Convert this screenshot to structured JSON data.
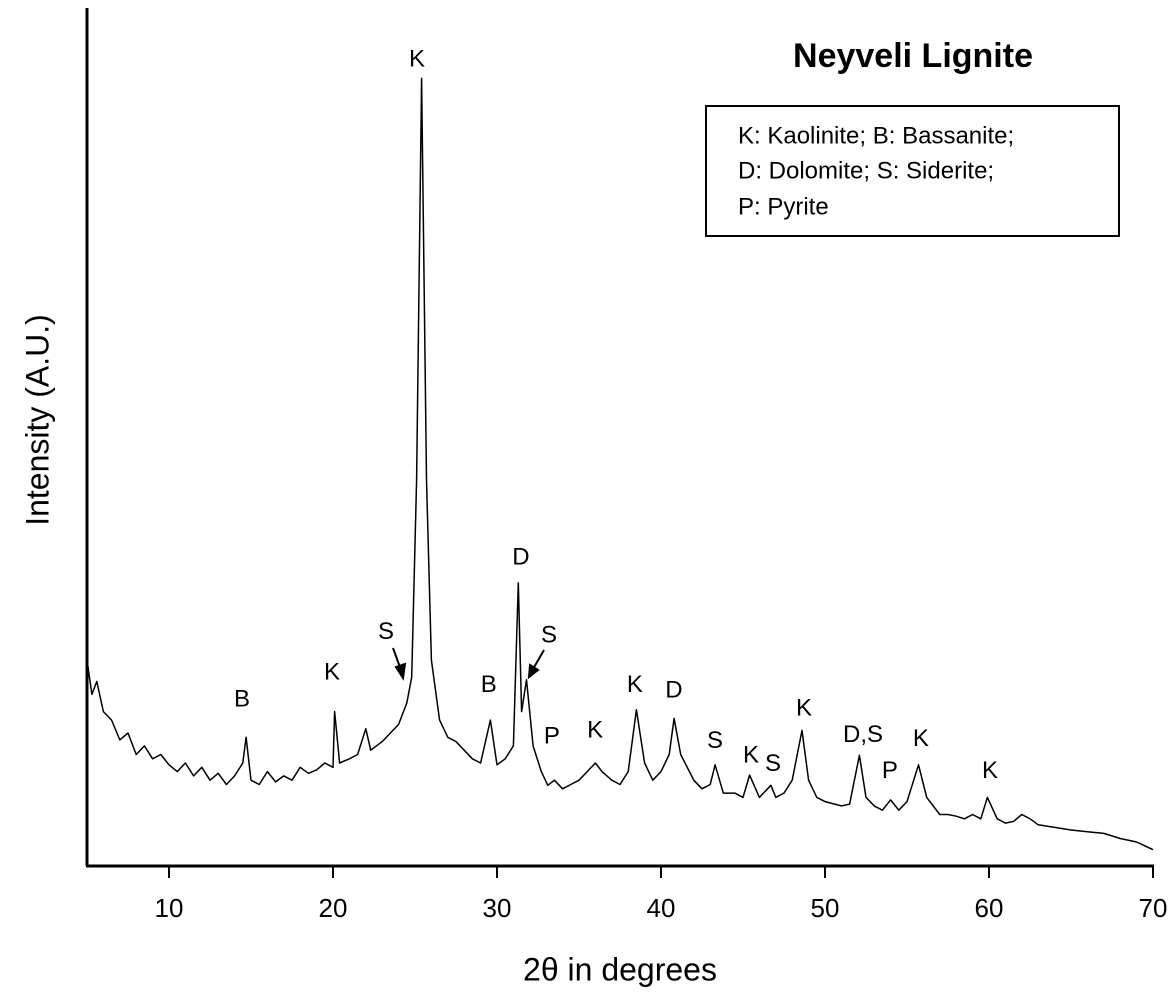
{
  "chart_data": {
    "type": "line",
    "title": "Neyveli Lignite",
    "x_label": "2θ in degrees",
    "y_label": "Intensity (A.U.)",
    "legend_text": [
      "K: Kaolinite; B: Bassanite;",
      "D: Dolomite; S: Siderite;",
      "P: Pyrite"
    ],
    "xlim": [
      5,
      70
    ],
    "ylim": [
      0,
      100
    ],
    "xticks": [
      10,
      20,
      30,
      40,
      50,
      60,
      70
    ],
    "color": "#000000",
    "x": [
      5,
      5.3,
      5.6,
      6,
      6.5,
      7,
      7.5,
      8,
      8.5,
      9,
      9.5,
      10,
      10.5,
      11,
      11.5,
      12,
      12.5,
      13,
      13.5,
      14,
      14.5,
      14.7,
      15,
      15.5,
      16,
      16.5,
      17,
      17.5,
      18,
      18.5,
      19,
      19.5,
      20,
      20.1,
      20.4,
      21,
      21.5,
      22,
      22.3,
      23,
      23.5,
      24,
      24.5,
      24.8,
      25.1,
      25.4,
      25.7,
      26,
      26.5,
      27,
      27.5,
      28,
      28.5,
      29,
      29.6,
      30,
      30.5,
      31,
      31.3,
      31.5,
      31.8,
      32.2,
      32.7,
      33.1,
      33.5,
      34,
      34.5,
      35,
      35.5,
      36,
      36.4,
      37,
      37.5,
      38,
      38.5,
      39,
      39.5,
      40,
      40.5,
      40.8,
      41.2,
      42,
      42.5,
      43,
      43.3,
      43.8,
      44.5,
      45,
      45.4,
      46,
      46.7,
      47,
      47.5,
      48,
      48.6,
      49,
      49.5,
      50,
      51,
      51.5,
      52.1,
      52.5,
      53,
      53.5,
      54,
      54.5,
      55,
      55.7,
      56.2,
      57,
      57.5,
      58,
      58.5,
      59,
      59.5,
      59.9,
      60.5,
      61,
      61.5,
      62,
      62.5,
      63,
      64,
      65,
      66,
      67,
      68,
      69,
      70
    ],
    "values": [
      24,
      20,
      21.5,
      18,
      17,
      14.7,
      15.5,
      13,
      14,
      12.5,
      13,
      11.8,
      11,
      12,
      10.5,
      11.5,
      10,
      10.8,
      9.5,
      10.5,
      12,
      15,
      10,
      9.5,
      11,
      9.8,
      10.5,
      10,
      11.5,
      10.8,
      11.2,
      12,
      11.5,
      18,
      12,
      12.5,
      13,
      16,
      13.5,
      14.5,
      15.5,
      16.5,
      19,
      22,
      45,
      91.8,
      45,
      24,
      17,
      15,
      14.5,
      13.5,
      12.5,
      12,
      17,
      11.8,
      12.5,
      14,
      33,
      18,
      21.7,
      14,
      11,
      9.4,
      10,
      9,
      9.5,
      10,
      11,
      12,
      11,
      10,
      9.5,
      11,
      18.2,
      12,
      10,
      11,
      13,
      17.2,
      13,
      10,
      9,
      9.5,
      11.8,
      8.5,
      8.5,
      8,
      10.6,
      8,
      9.4,
      8,
      8.5,
      10,
      15.8,
      10,
      8,
      7.5,
      7,
      7.2,
      12.9,
      8,
      7,
      6.5,
      7.7,
      6.5,
      7.5,
      11.8,
      8,
      6,
      6,
      5.8,
      5.5,
      6,
      5.5,
      8,
      5.5,
      5,
      5.2,
      6,
      5.5,
      4.8,
      4.5,
      4.2,
      4,
      3.8,
      3.2,
      2.8,
      1.9
    ],
    "annotations": [
      {
        "text": "K",
        "x": 25.12,
        "y": 93.9
      },
      {
        "text": "B",
        "x": 14.45,
        "y": 19.3
      },
      {
        "text": "K",
        "x": 19.94,
        "y": 22.5
      },
      {
        "text": "S",
        "x": 23.23,
        "y": 27.2
      },
      {
        "text": "B",
        "x": 29.5,
        "y": 21.0
      },
      {
        "text": "D",
        "x": 31.46,
        "y": 35.9
      },
      {
        "text": "S",
        "x": 33.17,
        "y": 26.8
      },
      {
        "text": "P",
        "x": 33.35,
        "y": 15.0
      },
      {
        "text": "K",
        "x": 35.98,
        "y": 15.7
      },
      {
        "text": "K",
        "x": 38.41,
        "y": 21.0
      },
      {
        "text": "D",
        "x": 40.79,
        "y": 20.4
      },
      {
        "text": "S",
        "x": 43.29,
        "y": 14.5
      },
      {
        "text": "K",
        "x": 45.49,
        "y": 12.8
      },
      {
        "text": "S",
        "x": 46.83,
        "y": 11.8
      },
      {
        "text": "K",
        "x": 48.72,
        "y": 18.3
      },
      {
        "text": "D,S",
        "x": 52.32,
        "y": 15.2
      },
      {
        "text": "P",
        "x": 53.96,
        "y": 11.0
      },
      {
        "text": "K",
        "x": 55.85,
        "y": 14.7
      },
      {
        "text": "K",
        "x": 60.06,
        "y": 11.0
      }
    ]
  }
}
